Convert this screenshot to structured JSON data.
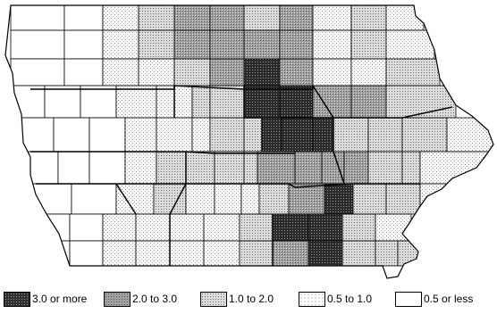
{
  "map": {
    "subject": "county map",
    "classes": [
      {
        "key": "c5",
        "label": "3.0 or more",
        "fill": "#303030",
        "pattern": "dense-dots"
      },
      {
        "key": "c4",
        "label": "2.0 to 3.0",
        "fill": "#9a9a9a",
        "pattern": "medium-dots"
      },
      {
        "key": "c3",
        "label": "1.0 to 2.0",
        "fill": "#cfcfcf",
        "pattern": "light-dots"
      },
      {
        "key": "c2",
        "label": "0.5 to 1.0",
        "fill": "#ebebeb",
        "pattern": "sparse-dots"
      },
      {
        "key": "c1",
        "label": "0.5 or less",
        "fill": "#ffffff",
        "pattern": "none"
      }
    ]
  },
  "legend": {
    "items": [
      {
        "key": "c5",
        "label": "3.0 or more"
      },
      {
        "key": "c4",
        "label": "2.0 to 3.0"
      },
      {
        "key": "c3",
        "label": "1.0 to 2.0"
      },
      {
        "key": "c2",
        "label": "0.5 to 1.0"
      },
      {
        "key": "c1",
        "label": "0.5 or less"
      }
    ]
  }
}
